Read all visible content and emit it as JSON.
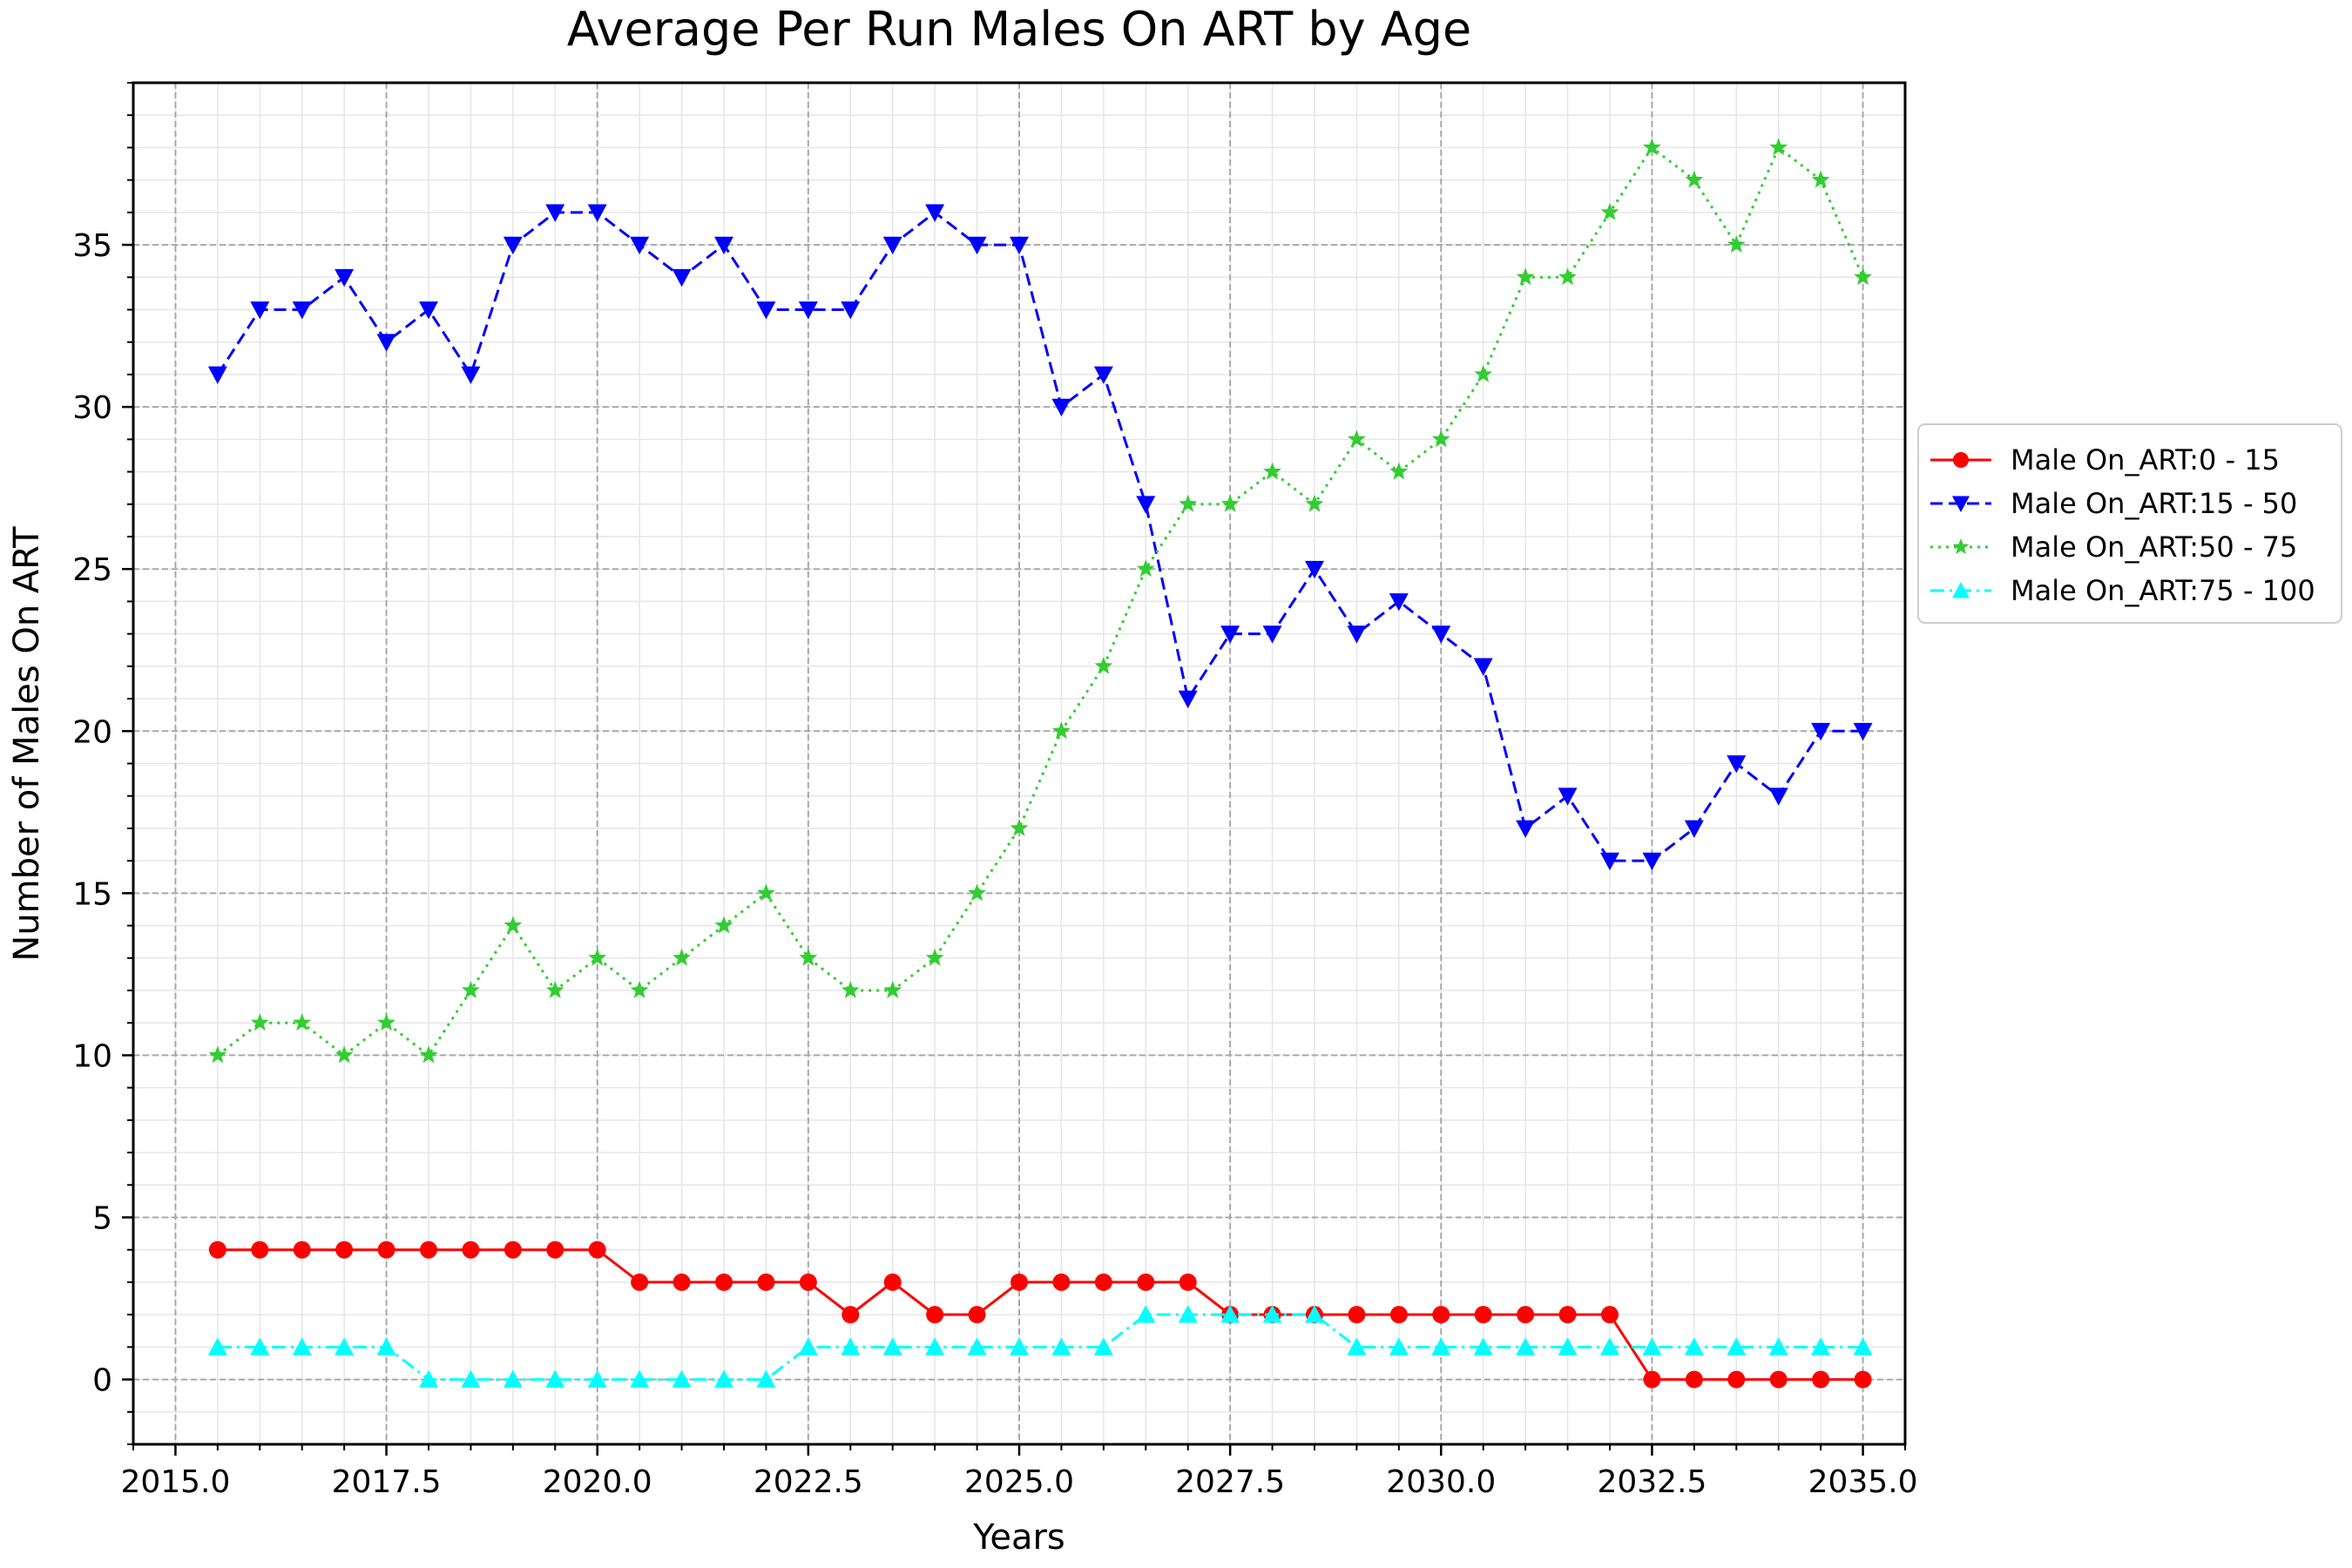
{
  "chart_data": {
    "type": "line",
    "title": "Average Per Run Males On ART by Age",
    "xlabel": "Years",
    "ylabel": "Number of Males On ART",
    "xlim": [
      2014.5,
      2035.5
    ],
    "ylim": [
      -2,
      40
    ],
    "xticks": [
      2015.0,
      2017.5,
      2020.0,
      2022.5,
      2025.0,
      2027.5,
      2030.0,
      2032.5,
      2035.0
    ],
    "xtick_labels": [
      "2015.0",
      "2017.5",
      "2020.0",
      "2022.5",
      "2025.0",
      "2027.5",
      "2030.0",
      "2032.5",
      "2035.0"
    ],
    "yticks": [
      0,
      5,
      10,
      15,
      20,
      25,
      30,
      35
    ],
    "ytick_labels": [
      "0",
      "5",
      "10",
      "15",
      "20",
      "25",
      "30",
      "35"
    ],
    "grid": true,
    "legend_position": "outside-right",
    "x": [
      2015.5,
      2016.0,
      2016.5,
      2017.0,
      2017.5,
      2018.0,
      2018.5,
      2019.0,
      2019.5,
      2020.0,
      2020.5,
      2021.0,
      2021.5,
      2022.0,
      2022.5,
      2023.0,
      2023.5,
      2024.0,
      2024.5,
      2025.0,
      2025.5,
      2026.0,
      2026.5,
      2027.0,
      2027.5,
      2028.0,
      2028.5,
      2029.0,
      2029.5,
      2030.0,
      2030.5,
      2031.0,
      2031.5,
      2032.0,
      2032.5,
      2033.0,
      2033.5,
      2034.0,
      2034.5,
      2035.0
    ],
    "series": [
      {
        "name": "Male On_ART:0 - 15",
        "color": "#ff0000",
        "line_style": "solid",
        "marker": "circle",
        "values": [
          4,
          4,
          4,
          4,
          4,
          4,
          4,
          4,
          4,
          4,
          3,
          3,
          3,
          3,
          3,
          2,
          3,
          2,
          2,
          3,
          3,
          3,
          3,
          3,
          2,
          2,
          2,
          2,
          2,
          2,
          2,
          2,
          2,
          2,
          0,
          0,
          0,
          0,
          0,
          0
        ]
      },
      {
        "name": "Male On_ART:15 - 50",
        "color": "#0000ff",
        "line_style": "dashed",
        "marker": "triangle-down",
        "values": [
          31,
          33,
          33,
          34,
          32,
          33,
          31,
          35,
          36,
          36,
          35,
          34,
          35,
          33,
          33,
          33,
          35,
          36,
          35,
          35,
          30,
          31,
          27,
          21,
          23,
          23,
          25,
          23,
          24,
          23,
          22,
          17,
          18,
          16,
          16,
          17,
          19,
          18,
          20,
          20
        ]
      },
      {
        "name": "Male On_ART:50 - 75",
        "color": "#32cd32",
        "line_style": "dotted",
        "marker": "star",
        "values": [
          10,
          11,
          11,
          10,
          11,
          10,
          12,
          14,
          12,
          13,
          12,
          13,
          14,
          15,
          13,
          12,
          12,
          13,
          15,
          17,
          20,
          22,
          25,
          27,
          27,
          28,
          27,
          29,
          28,
          29,
          31,
          34,
          34,
          36,
          38,
          37,
          35,
          38,
          37,
          34
        ]
      },
      {
        "name": "Male On_ART:75 - 100",
        "color": "#00ffff",
        "line_style": "dashdot",
        "marker": "triangle-up",
        "values": [
          1,
          1,
          1,
          1,
          1,
          0,
          0,
          0,
          0,
          0,
          0,
          0,
          0,
          0,
          1,
          1,
          1,
          1,
          1,
          1,
          1,
          1,
          2,
          2,
          2,
          2,
          2,
          1,
          1,
          1,
          1,
          1,
          1,
          1,
          1,
          1,
          1,
          1,
          1,
          1
        ]
      }
    ]
  }
}
